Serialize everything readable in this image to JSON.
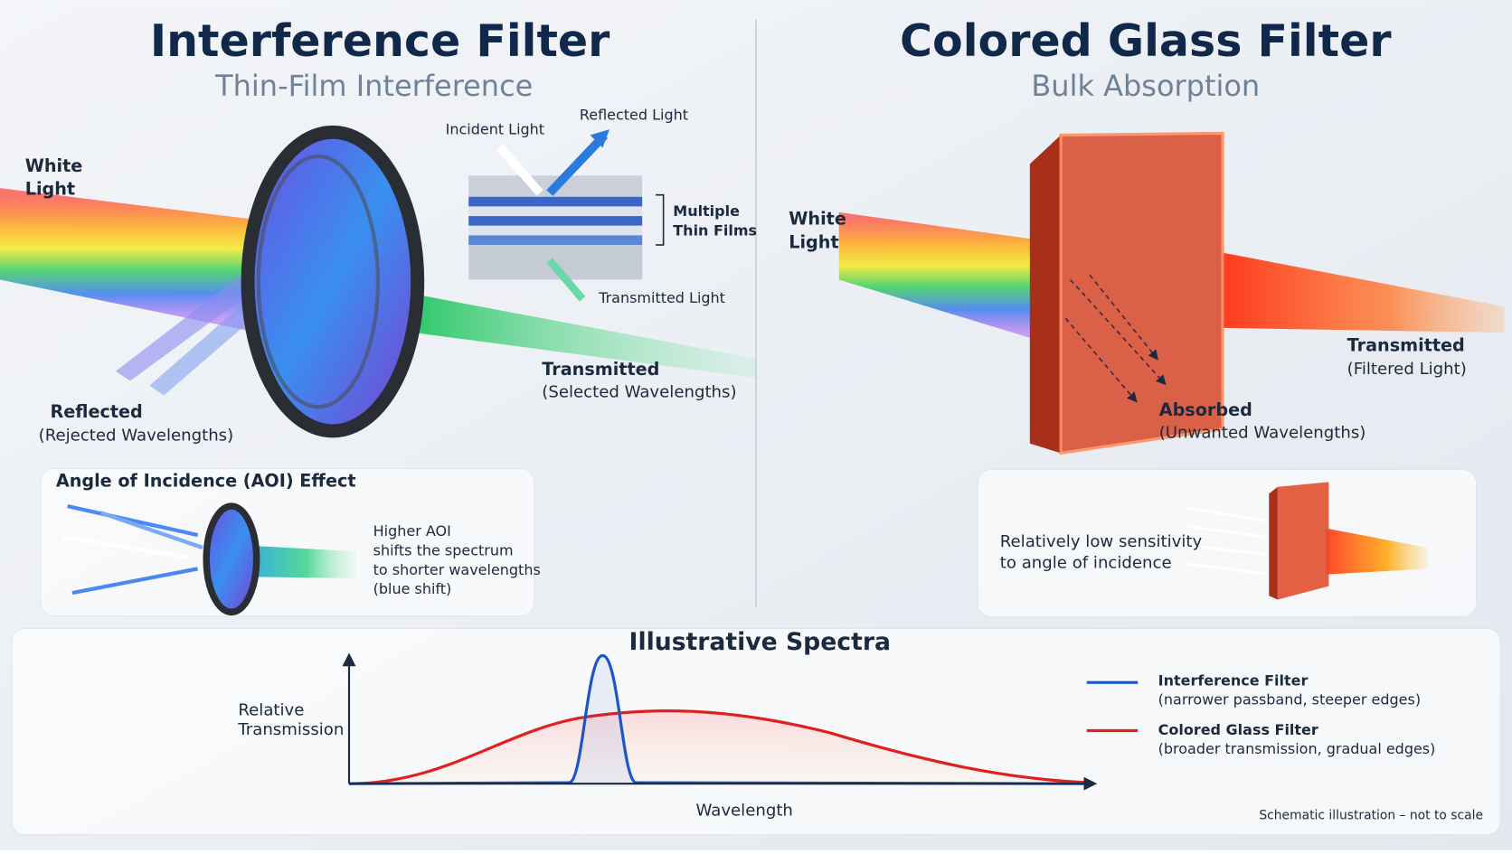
{
  "left": {
    "title": "Interference Filter",
    "subtitle": "Thin-Film Interference",
    "white_light": [
      "White",
      "Light"
    ],
    "incident_light": "Incident Light",
    "reflected_light": "Reflected Light",
    "multiple_thin_films": [
      "Multiple",
      "Thin Films"
    ],
    "transmitted_light": "Transmitted Light",
    "transmitted": {
      "label": "Transmitted",
      "detail": "(Selected Wavelengths)"
    },
    "reflected": {
      "label": "Reflected",
      "detail": "(Rejected Wavelengths)"
    },
    "aoi_box": {
      "title": "Angle of Incidence (AOI) Effect",
      "lines": [
        "Higher AOI",
        "shifts the spectrum",
        "to shorter wavelengths",
        "(blue shift)"
      ]
    }
  },
  "right": {
    "title": "Colored Glass Filter",
    "subtitle": "Bulk Absorption",
    "white_light": [
      "White",
      "Light"
    ],
    "transmitted": {
      "label": "Transmitted",
      "detail": "(Filtered Light)"
    },
    "absorbed": {
      "label": "Absorbed",
      "detail": "(Unwanted Wavelengths)"
    },
    "aoi_box": {
      "lines": [
        "Relatively low sensitivity",
        "to angle of incidence"
      ]
    }
  },
  "spectra": {
    "title": "Illustrative Spectra",
    "y_label": [
      "Relative",
      "Transmission"
    ],
    "x_label": "Wavelength",
    "legend": [
      {
        "name": "Interference Filter",
        "note": "(narrower passband, steeper edges)"
      },
      {
        "name": "Colored Glass Filter",
        "note": "(broader transmission, gradual edges)"
      }
    ],
    "footnote": "Schematic illustration – not to scale"
  }
}
